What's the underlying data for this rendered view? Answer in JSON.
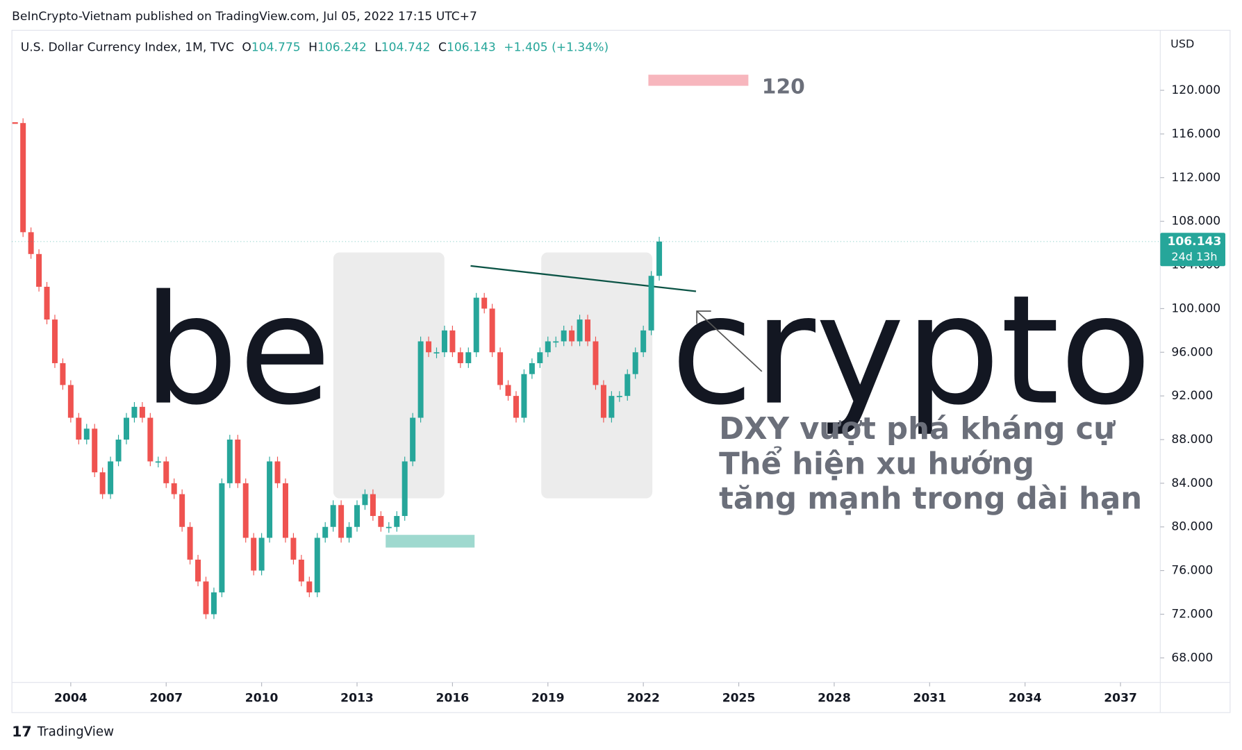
{
  "header": {
    "published": "BeInCrypto-Vietnam published on TradingView.com, Jul 05, 2022 17:15 UTC+7"
  },
  "footer": {
    "brand": "TradingView"
  },
  "chart_data": {
    "type": "candlestick",
    "title": "U.S. Dollar Currency Index, 1M, TVC",
    "ohlc_legend": [
      {
        "key": "O",
        "value": "104.775"
      },
      {
        "key": "H",
        "value": "106.242"
      },
      {
        "key": "L",
        "value": "104.742"
      },
      {
        "key": "C",
        "value": "106.143"
      }
    ],
    "change": "+1.405 (+1.34%)",
    "currency": "USD",
    "last_price": {
      "value": 106.143,
      "label": "106.143"
    },
    "countdown": "24d 13h",
    "target_label": "120",
    "annotation": [
      "DXY vượt phá kháng cự",
      "Thể hiện xu hướng",
      "tăng mạnh trong dài hạn"
    ],
    "up_color": "#26a69a",
    "down_color": "#ef5350",
    "x": [
      2002.25,
      2002.5,
      2002.75,
      2003,
      2003.25,
      2003.5,
      2003.75,
      2004,
      2004.25,
      2004.5,
      2004.75,
      2005,
      2005.25,
      2005.5,
      2005.75,
      2006,
      2006.25,
      2006.5,
      2006.75,
      2007,
      2007.25,
      2007.5,
      2007.75,
      2008,
      2008.25,
      2008.5,
      2008.75,
      2009,
      2009.25,
      2009.5,
      2009.75,
      2010,
      2010.25,
      2010.5,
      2010.75,
      2011,
      2011.25,
      2011.5,
      2011.75,
      2012,
      2012.25,
      2012.5,
      2012.75,
      2013,
      2013.25,
      2013.5,
      2013.75,
      2014,
      2014.25,
      2014.5,
      2014.75,
      2015,
      2015.25,
      2015.5,
      2015.75,
      2016,
      2016.25,
      2016.5,
      2016.75,
      2017,
      2017.25,
      2017.5,
      2017.75,
      2018,
      2018.25,
      2018.5,
      2018.75,
      2019,
      2019.25,
      2019.5,
      2019.75,
      2020,
      2020.25,
      2020.5,
      2020.75,
      2021,
      2021.25,
      2021.5,
      2021.75,
      2022,
      2022.25,
      2022.5
    ],
    "values": [
      117,
      107,
      105,
      102,
      99,
      95,
      93,
      90,
      88,
      89,
      85,
      83,
      86,
      88,
      90,
      91,
      90,
      86,
      86,
      84,
      83,
      80,
      77,
      75,
      72,
      74,
      84,
      88,
      84,
      79,
      76,
      79,
      86,
      84,
      79,
      77,
      75,
      74,
      79,
      80,
      82,
      79,
      80,
      82,
      83,
      81,
      80,
      80,
      81,
      86,
      90,
      97,
      96,
      96,
      98,
      96,
      95,
      96,
      101,
      100,
      96,
      93,
      92,
      90,
      94,
      95,
      96,
      97,
      97,
      98,
      97,
      99,
      97,
      93,
      90,
      92,
      92,
      94,
      96,
      98,
      103,
      106.143
    ],
    "xlim": [
      2002.15,
      2038.25
    ],
    "ylim": [
      65.75,
      125.5
    ],
    "xticks": [
      2004,
      2007,
      2010,
      2013,
      2016,
      2019,
      2022,
      2025,
      2028,
      2031,
      2034,
      2037
    ],
    "yticks": [
      {
        "value": 68,
        "label": "68.000"
      },
      {
        "value": 72,
        "label": "72.000"
      },
      {
        "value": 76,
        "label": "76.000"
      },
      {
        "value": 80,
        "label": "80.000"
      },
      {
        "value": 84,
        "label": "84.000"
      },
      {
        "value": 88,
        "label": "88.000"
      },
      {
        "value": 92,
        "label": "92.000"
      },
      {
        "value": 96,
        "label": "96.000"
      },
      {
        "value": 100,
        "label": "100.000"
      },
      {
        "value": 104,
        "label": "104.000"
      },
      {
        "value": 108,
        "label": "108.000"
      },
      {
        "value": 112,
        "label": "112.000"
      },
      {
        "value": 116,
        "label": "116.000"
      },
      {
        "value": 120,
        "label": "120.000"
      }
    ]
  }
}
